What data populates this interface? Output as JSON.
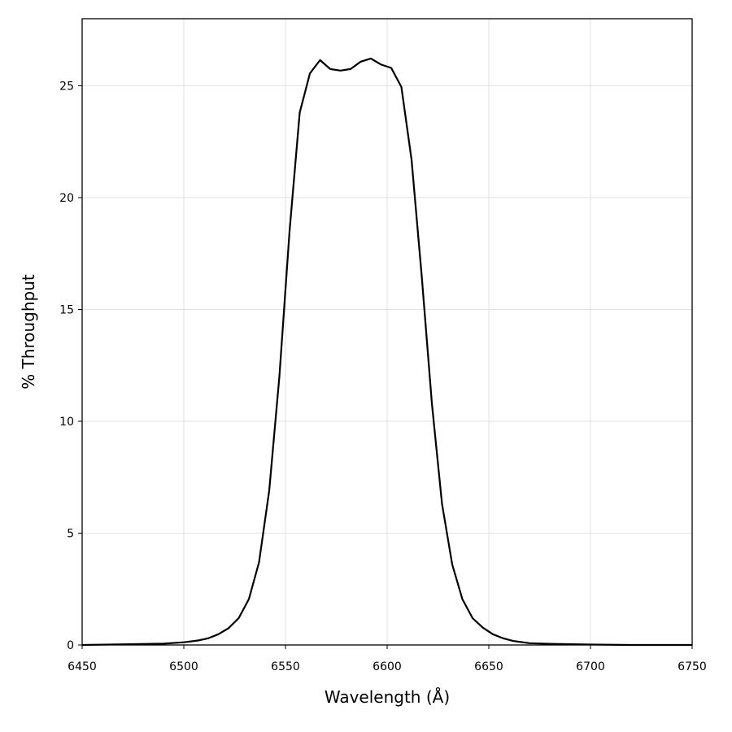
{
  "chart_data": {
    "type": "line",
    "title": "",
    "xlabel": "Wavelength (Å)",
    "ylabel": "% Throughput",
    "xlim": [
      6450,
      6750
    ],
    "ylim": [
      0,
      28
    ],
    "xticks": [
      6450,
      6500,
      6550,
      6600,
      6650,
      6700,
      6750
    ],
    "yticks": [
      0,
      5,
      10,
      15,
      20,
      25
    ],
    "grid": true,
    "legend": "none",
    "series": [
      {
        "color": "#000000",
        "x": [
          6450,
          6470,
          6490,
          6500,
          6507,
          6512,
          6517,
          6522,
          6527,
          6532,
          6537,
          6542,
          6547,
          6552,
          6557,
          6562,
          6567,
          6572,
          6577,
          6582,
          6587,
          6592,
          6597,
          6602,
          6607,
          6612,
          6617,
          6622,
          6627,
          6632,
          6637,
          6642,
          6647,
          6652,
          6657,
          6662,
          6670,
          6680,
          6700,
          6720,
          6750
        ],
        "y": [
          0.0,
          0.03,
          0.06,
          0.12,
          0.2,
          0.3,
          0.48,
          0.75,
          1.2,
          2.05,
          3.7,
          6.9,
          12.0,
          18.5,
          23.8,
          25.55,
          26.15,
          25.75,
          25.68,
          25.75,
          26.08,
          26.22,
          25.95,
          25.8,
          24.95,
          21.7,
          16.5,
          10.8,
          6.3,
          3.6,
          2.05,
          1.2,
          0.78,
          0.48,
          0.3,
          0.18,
          0.08,
          0.05,
          0.02,
          0.0,
          0.0
        ]
      }
    ]
  }
}
